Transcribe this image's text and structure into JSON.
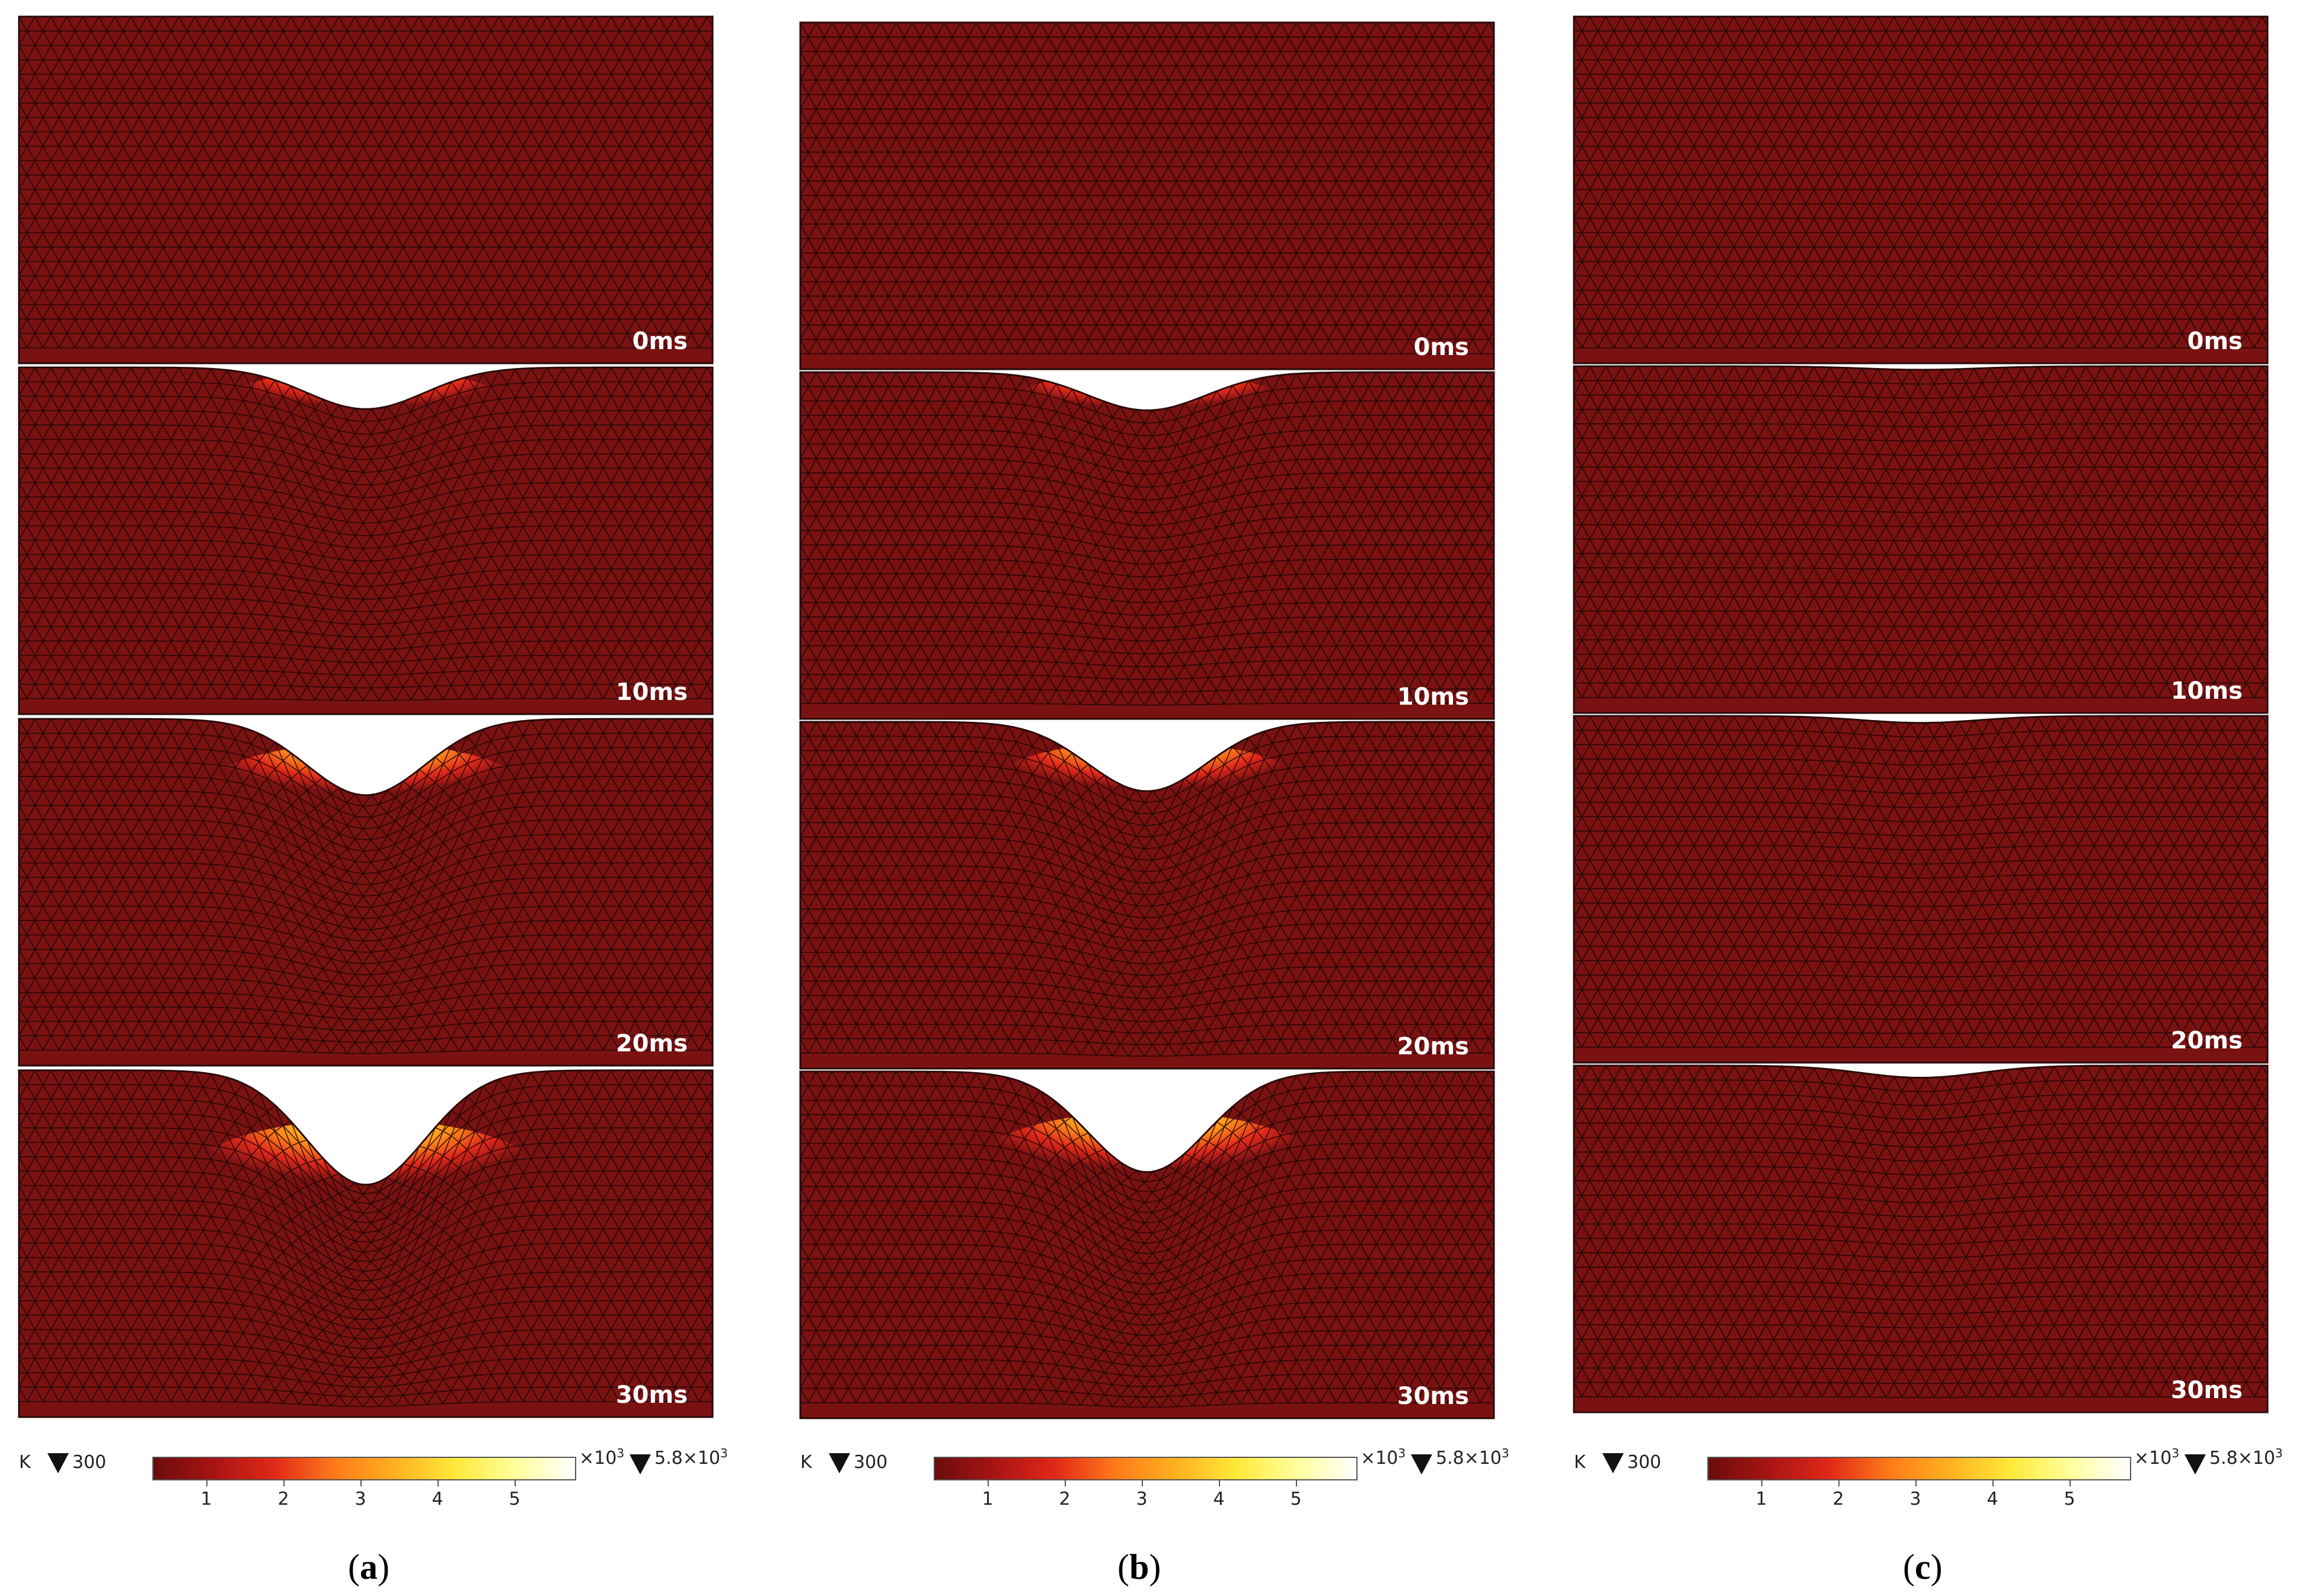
{
  "panels": [
    {
      "id": "a",
      "label_open": "(",
      "label_letter": "a",
      "label_close": ")",
      "frames": [
        {
          "time": "0ms",
          "indent_depth": 0
        },
        {
          "time": "10ms",
          "indent_depth": 0.12
        },
        {
          "time": "20ms",
          "indent_depth": 0.22
        },
        {
          "time": "30ms",
          "indent_depth": 0.33
        }
      ],
      "colorbar": {
        "unit": "K",
        "min": "300",
        "ticks": [
          "1",
          "2",
          "3",
          "4",
          "5"
        ],
        "scale_base": "×10",
        "scale_exp": "3",
        "max_base": "5.8×10",
        "max_exp": "3"
      }
    },
    {
      "id": "b",
      "label_open": "(",
      "label_letter": "b",
      "label_close": ")",
      "frames": [
        {
          "time": "0ms",
          "indent_depth": 0
        },
        {
          "time": "10ms",
          "indent_depth": 0.11
        },
        {
          "time": "20ms",
          "indent_depth": 0.2
        },
        {
          "time": "30ms",
          "indent_depth": 0.29
        }
      ],
      "colorbar": {
        "unit": "K",
        "min": "300",
        "ticks": [
          "1",
          "2",
          "3",
          "4",
          "5"
        ],
        "scale_base": "×10",
        "scale_exp": "3",
        "max_base": "5.8×10",
        "max_exp": "3"
      }
    },
    {
      "id": "c",
      "label_open": "(",
      "label_letter": "c",
      "label_close": ")",
      "frames": [
        {
          "time": "0ms",
          "indent_depth": 0
        },
        {
          "time": "10ms",
          "indent_depth": 0.01
        },
        {
          "time": "20ms",
          "indent_depth": 0.02
        },
        {
          "time": "30ms",
          "indent_depth": 0.035
        }
      ],
      "colorbar": {
        "unit": "K",
        "min": "300",
        "ticks": [
          "1",
          "2",
          "3",
          "4",
          "5"
        ],
        "scale_base": "×10",
        "scale_exp": "3",
        "max_base": "5.8×10",
        "max_exp": "3"
      }
    }
  ],
  "colors": {
    "material": "#7a1212",
    "mesh_line": "#1a0505",
    "hot_1": "#e0281a",
    "hot_2": "#ff8c1a",
    "hot_3": "#ffe833",
    "hot_4": "#ffffd8",
    "colormap": [
      "#6b0c0c",
      "#a81414",
      "#e02818",
      "#ff7a1a",
      "#ffb020",
      "#ffe838",
      "#ffff9a",
      "#ffffff"
    ]
  }
}
